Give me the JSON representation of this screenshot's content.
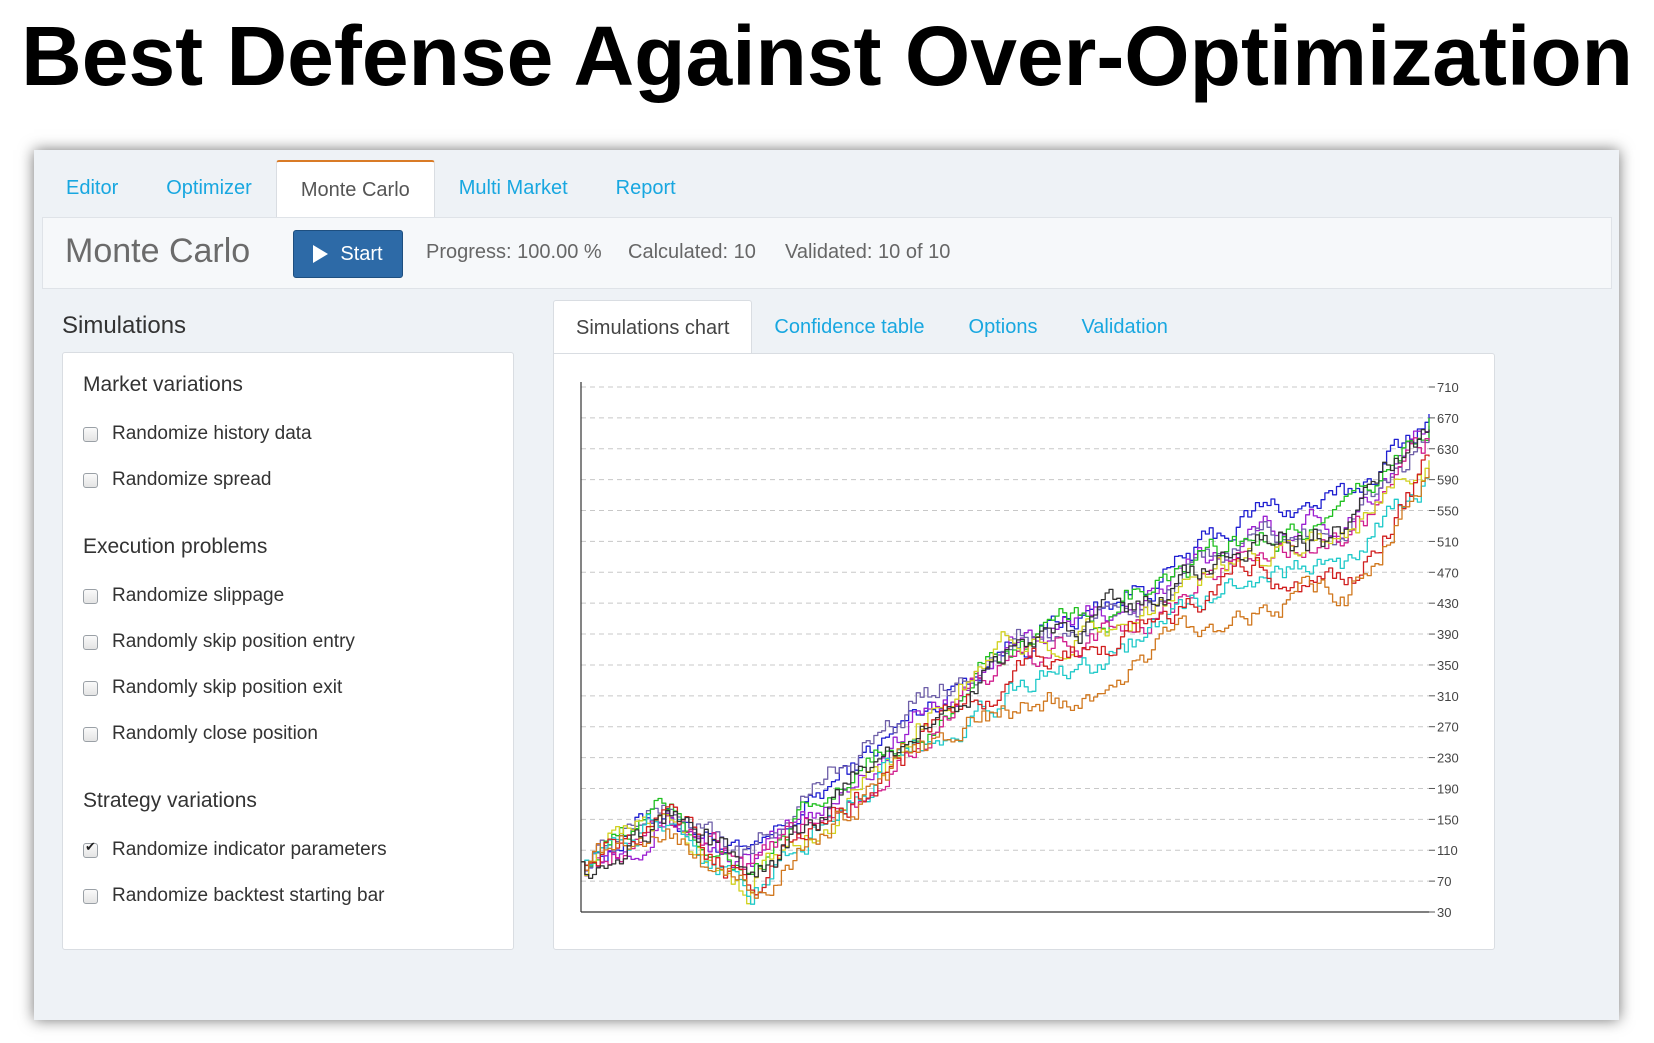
{
  "headline": "Best Defense Against Over-Optimization",
  "nav_tabs": [
    {
      "label": "Editor",
      "active": false
    },
    {
      "label": "Optimizer",
      "active": false
    },
    {
      "label": "Monte Carlo",
      "active": true
    },
    {
      "label": "Multi Market",
      "active": false
    },
    {
      "label": "Report",
      "active": false
    }
  ],
  "toolbar": {
    "title": "Monte Carlo",
    "start_label": "Start",
    "progress": "Progress: 100.00 %",
    "calculated": "Calculated: 10",
    "validated": "Validated: 10 of 10"
  },
  "simulations": {
    "title": "Simulations",
    "groups": [
      {
        "title": "Market variations",
        "items": [
          {
            "label": "Randomize history data",
            "checked": false
          },
          {
            "label": "Randomize spread",
            "checked": false
          }
        ]
      },
      {
        "title": "Execution problems",
        "items": [
          {
            "label": "Randomize slippage",
            "checked": false
          },
          {
            "label": "Randomly skip position entry",
            "checked": false
          },
          {
            "label": "Randomly skip position exit",
            "checked": false
          },
          {
            "label": "Randomly close position",
            "checked": false
          }
        ]
      },
      {
        "title": "Strategy variations",
        "items": [
          {
            "label": "Randomize indicator parameters",
            "checked": true
          },
          {
            "label": "Randomize backtest starting bar",
            "checked": false
          }
        ]
      }
    ]
  },
  "right_tabs": [
    {
      "label": "Simulations chart",
      "active": true
    },
    {
      "label": "Confidence table",
      "active": false
    },
    {
      "label": "Options",
      "active": false
    },
    {
      "label": "Validation",
      "active": false
    }
  ],
  "chart_data": {
    "type": "line",
    "title": "",
    "xlabel": "",
    "ylabel": "",
    "ylim": [
      30,
      710
    ],
    "yticks": [
      710,
      670,
      630,
      590,
      550,
      510,
      470,
      430,
      390,
      350,
      310,
      270,
      230,
      190,
      150,
      110,
      70,
      30
    ],
    "grid": true,
    "x": [
      0,
      10,
      20,
      30,
      40,
      50,
      60,
      70,
      80,
      90,
      100
    ],
    "series": [
      {
        "color": "#1f1fd1",
        "values": [
          95,
          165,
          90,
          200,
          290,
          380,
          420,
          475,
          550,
          560,
          675
        ]
      },
      {
        "color": "#9b1fd1",
        "values": [
          95,
          160,
          85,
          185,
          280,
          370,
          410,
          455,
          525,
          545,
          660
        ]
      },
      {
        "color": "#6e5fa8",
        "values": [
          95,
          170,
          100,
          215,
          305,
          375,
          400,
          440,
          520,
          520,
          650
        ]
      },
      {
        "color": "#20c020",
        "values": [
          95,
          160,
          80,
          180,
          270,
          365,
          405,
          460,
          520,
          530,
          670
        ]
      },
      {
        "color": "#d11f8e",
        "values": [
          95,
          155,
          75,
          170,
          260,
          345,
          385,
          430,
          500,
          510,
          640
        ]
      },
      {
        "color": "#d1d11f",
        "values": [
          95,
          150,
          70,
          165,
          275,
          380,
          395,
          440,
          505,
          525,
          615
        ]
      },
      {
        "color": "#1fc9c9",
        "values": [
          95,
          150,
          60,
          160,
          245,
          320,
          355,
          410,
          475,
          480,
          595
        ]
      },
      {
        "color": "#d11f1f",
        "values": [
          95,
          145,
          65,
          160,
          250,
          335,
          370,
          420,
          470,
          440,
          620
        ]
      },
      {
        "color": "#d1781f",
        "values": [
          95,
          140,
          50,
          150,
          240,
          290,
          310,
          390,
          430,
          440,
          605
        ]
      },
      {
        "color": "#333333",
        "values": [
          95,
          155,
          75,
          175,
          270,
          365,
          400,
          450,
          515,
          525,
          655
        ]
      }
    ]
  }
}
